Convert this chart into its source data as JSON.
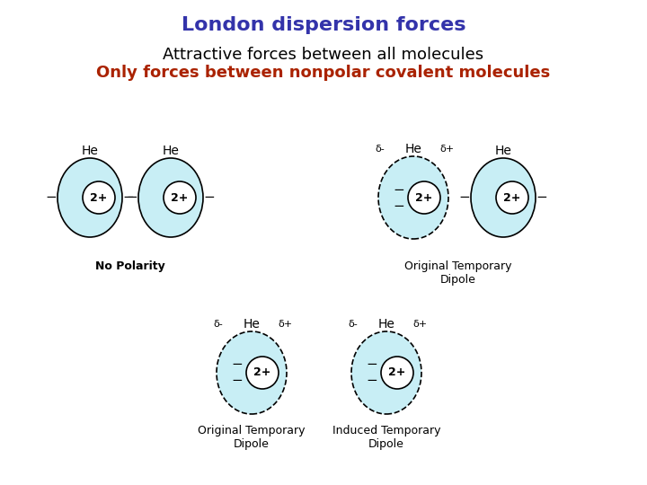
{
  "title": "London dispersion forces",
  "title_color": "#3333AA",
  "subtitle1": "Attractive forces between all molecules",
  "subtitle1_color": "#000000",
  "subtitle2": "Only forces between nonpolar covalent molecules",
  "subtitle2_color": "#AA2200",
  "bg_color": "#FFFFFF",
  "atom_fill": "#C8EEF5",
  "atom_edge": "#000000",
  "nucleus_fill": "#FFFFFF",
  "nucleus_edge": "#000000",
  "title_fontsize": 16,
  "subtitle1_fontsize": 13,
  "subtitle2_fontsize": 13,
  "he_fontsize": 10,
  "twoplus_fontsize": 9,
  "minus_fontsize": 11,
  "delta_fontsize": 8,
  "label_fontsize": 9
}
